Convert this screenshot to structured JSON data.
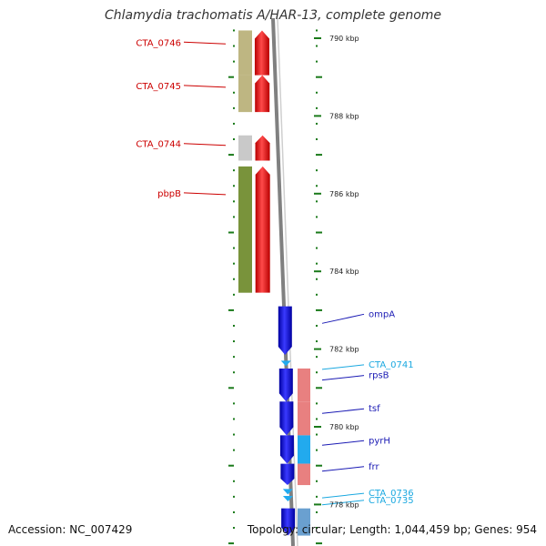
{
  "title": "Chlamydia trachomatis A/HAR-13, complete genome",
  "accession_text": "Accession: NC_007429",
  "summary_text": "Topology: circular; Length: 1,044,459 bp; Genes: 954",
  "colors": {
    "reverse_strand_gene": "#ee1111",
    "forward_strand_gene": "#1010dd",
    "forward_label": "#1a1ab4",
    "forward_label_alt": "#1aa8e0",
    "reverse_label": "#cc0000",
    "tick_mark": "#1a7a1a",
    "backbone": "#808080"
  },
  "scale": {
    "unit": "kbp",
    "ticks": [
      {
        "kbp": 790,
        "label": "790 kbp"
      },
      {
        "kbp": 788,
        "label": "788 kbp"
      },
      {
        "kbp": 786,
        "label": "786 kbp"
      },
      {
        "kbp": 784,
        "label": "784 kbp"
      },
      {
        "kbp": 782,
        "label": "782 kbp"
      },
      {
        "kbp": 780,
        "label": "780 kbp"
      },
      {
        "kbp": 778,
        "label": "778 kbp"
      }
    ]
  },
  "reverse_genes": [
    {
      "label": "CTA_0746",
      "start_kbp": 790.2,
      "end_kbp": 789.05,
      "cog_color": "#b8b077"
    },
    {
      "label": "CTA_0745",
      "start_kbp": 789.05,
      "end_kbp": 788.1,
      "cog_color": "#b8b077"
    },
    {
      "label": "CTA_0744",
      "start_kbp": 787.5,
      "end_kbp": 786.85,
      "cog_color": "#c4c4c4"
    },
    {
      "label": "pbpB",
      "start_kbp": 786.7,
      "end_kbp": 783.45,
      "cog_color": "#6e8a2a"
    }
  ],
  "forward_genes": [
    {
      "label": "ompA",
      "start_kbp": 783.1,
      "end_kbp": 781.85,
      "arrow_color": "#1010dd",
      "label_color": "#1a1ab4",
      "cog_color": ""
    },
    {
      "label": "CTA_0741",
      "start_kbp": 781.7,
      "end_kbp": 781.6,
      "arrow_color": "#22aaee",
      "label_color": "#1aa8e0",
      "cog_color": ""
    },
    {
      "label": "rpsB",
      "start_kbp": 781.5,
      "end_kbp": 780.65,
      "arrow_color": "#1010dd",
      "label_color": "#1a1ab4",
      "cog_color": "#e88080"
    },
    {
      "label": "tsf",
      "start_kbp": 780.65,
      "end_kbp": 779.78,
      "arrow_color": "#1010dd",
      "label_color": "#1a1ab4",
      "cog_color": "#e88080"
    },
    {
      "label": "pyrH",
      "start_kbp": 779.78,
      "end_kbp": 779.05,
      "arrow_color": "#1010dd",
      "label_color": "#1a1ab4",
      "cog_color": "#22aaee"
    },
    {
      "label": "frr",
      "start_kbp": 779.05,
      "end_kbp": 778.5,
      "arrow_color": "#1010dd",
      "label_color": "#1a1ab4",
      "cog_color": "#e88080"
    },
    {
      "label": "CTA_0736",
      "start_kbp": 778.4,
      "end_kbp": 778.28,
      "arrow_color": "#22aaee",
      "label_color": "#1aa8e0",
      "cog_color": ""
    },
    {
      "label": "CTA_0735",
      "start_kbp": 778.22,
      "end_kbp": 778.1,
      "arrow_color": "#22aaee",
      "label_color": "#1aa8e0",
      "cog_color": ""
    },
    {
      "label": "",
      "start_kbp": 777.9,
      "end_kbp": 777.2,
      "arrow_color": "#1010dd",
      "label_color": "#1a1ab4",
      "cog_color": "#6aa0d0"
    }
  ]
}
